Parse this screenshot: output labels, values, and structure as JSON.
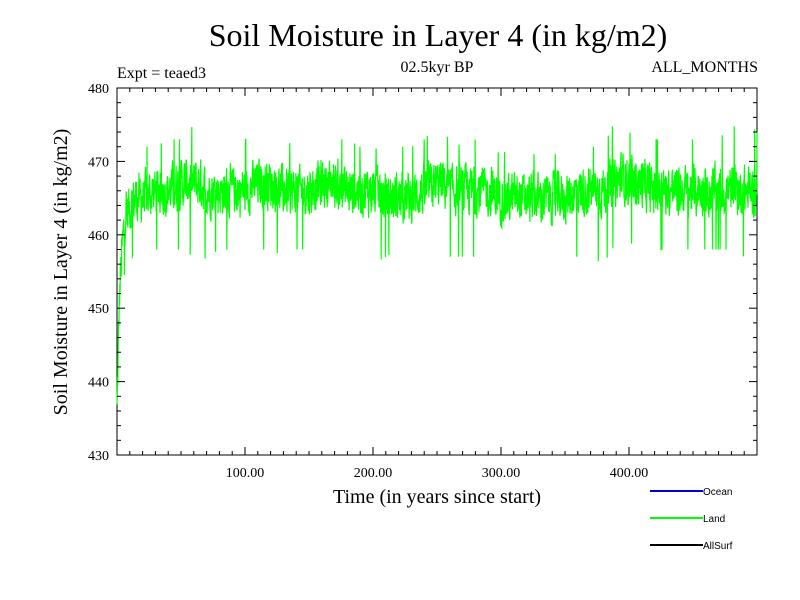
{
  "chart_data": {
    "type": "line",
    "title": "Soil Moisture in Layer 4 (in kg/m2)",
    "subtitle_left": "Expt = teaed3",
    "subtitle_center": "02.5kyr BP",
    "subtitle_right": "ALL_MONTHS",
    "xlabel": "Time (in years since start)",
    "ylabel": "Soil Moisture in Layer 4 (in kg/m2)",
    "xlim": [
      0,
      500
    ],
    "ylim": [
      430,
      480
    ],
    "x_ticks": [
      100,
      200,
      300,
      400
    ],
    "x_tick_labels": [
      "100.00",
      "200.00",
      "300.00",
      "400.00"
    ],
    "y_ticks": [
      430,
      440,
      450,
      460,
      470,
      480
    ],
    "y_tick_labels": [
      "430",
      "440",
      "450",
      "460",
      "470",
      "480"
    ],
    "legend": [
      {
        "name": "Ocean",
        "color": "#0000cc"
      },
      {
        "name": "Land",
        "color": "#00ff00"
      },
      {
        "name": "AllSurf",
        "color": "#000000"
      }
    ],
    "series": [
      {
        "name": "Land",
        "color": "#00ff00",
        "x": [
          0,
          2,
          4,
          6,
          10,
          15,
          20,
          30,
          40,
          50,
          60,
          65,
          70,
          80,
          90,
          100,
          110,
          120,
          130,
          140,
          150,
          160,
          170,
          180,
          190,
          200,
          210,
          220,
          230,
          240,
          250,
          255,
          260,
          270,
          280,
          290,
          300,
          310,
          320,
          330,
          340,
          350,
          360,
          370,
          380,
          390,
          395,
          400,
          410,
          420,
          430,
          440,
          450,
          460,
          470,
          480,
          490,
          495,
          500
        ],
        "mean": [
          436,
          452,
          458,
          462,
          464,
          465,
          465,
          466,
          466,
          467,
          467,
          467,
          466,
          466,
          466,
          466,
          467,
          467,
          466,
          466,
          466,
          467,
          467,
          466,
          466,
          466,
          465,
          465,
          465,
          466,
          467,
          467,
          466,
          466,
          466,
          466,
          465,
          465,
          465,
          465,
          465,
          465,
          466,
          466,
          466,
          467,
          468,
          467,
          467,
          466,
          466,
          466,
          466,
          466,
          466,
          466,
          466,
          466,
          466
        ],
        "min": [
          436,
          440,
          450,
          455,
          456,
          458,
          457,
          458,
          458,
          458,
          457,
          456,
          457,
          458,
          458,
          458,
          458,
          458,
          457,
          458,
          458,
          458,
          458,
          458,
          457,
          456,
          457,
          458,
          457,
          458,
          459,
          458,
          457,
          457,
          457,
          458,
          456,
          457,
          456,
          455,
          457,
          457,
          457,
          457,
          456,
          459,
          460,
          459,
          458,
          458,
          458,
          458,
          458,
          458,
          458,
          458,
          457,
          456,
          458
        ],
        "max": [
          440,
          458,
          463,
          465,
          468,
          471,
          472,
          472,
          473,
          473,
          475,
          474,
          472,
          472,
          473,
          473,
          473,
          473,
          473,
          472,
          472,
          473,
          473,
          473,
          472,
          472,
          471,
          472,
          472,
          473,
          475,
          474,
          473,
          472,
          473,
          472,
          471,
          472,
          471,
          471,
          471,
          471,
          472,
          472,
          472,
          476,
          475,
          474,
          473,
          473,
          473,
          473,
          473,
          473,
          473,
          475,
          474,
          475,
          474
        ],
        "noise_amplitude": 4.5
      },
      {
        "name": "Ocean",
        "color": "#0000cc",
        "x": [],
        "values": []
      },
      {
        "name": "AllSurf",
        "color": "#000000",
        "x": [],
        "values": []
      }
    ]
  }
}
